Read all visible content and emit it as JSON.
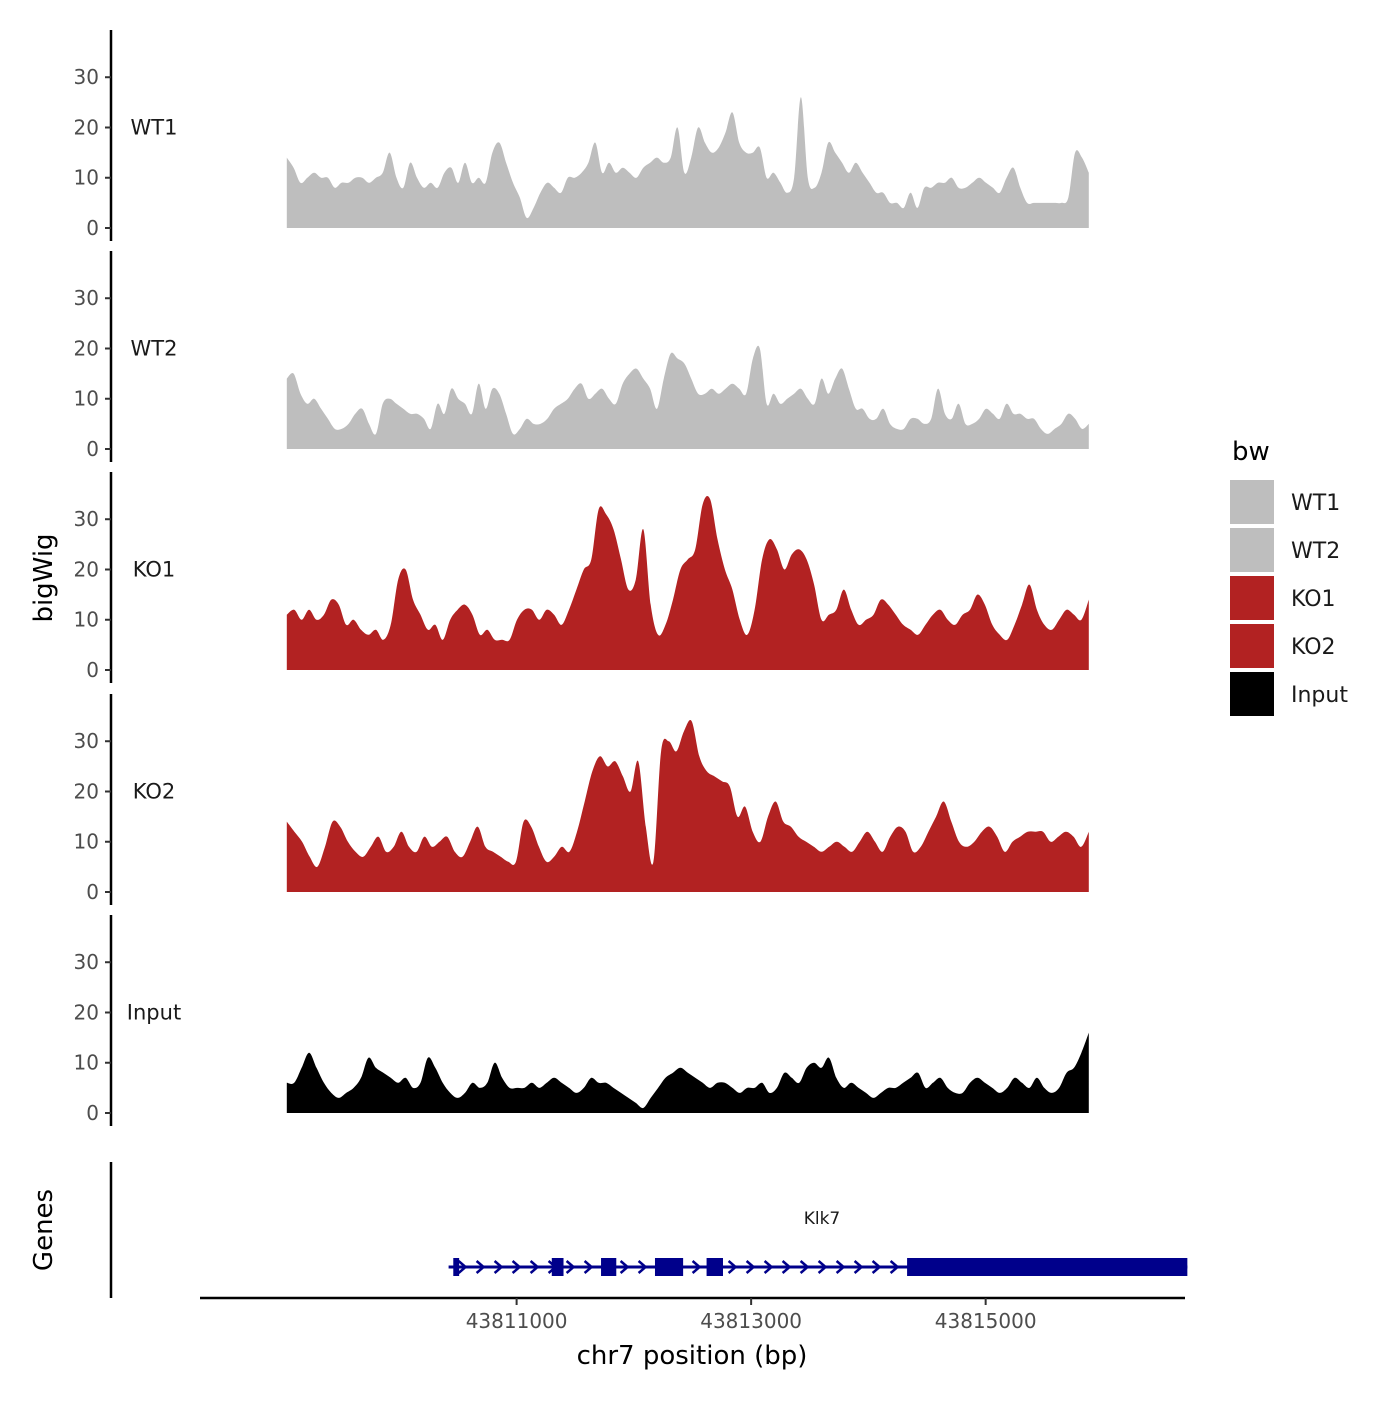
{
  "chart_data": {
    "type": "area",
    "y_axis_title": "bigWig",
    "x_axis_title": "chr7 position (bp)",
    "x_range": [
      43808300,
      43816700
    ],
    "x_ticks": [
      {
        "value": 43811000,
        "label": "43811000"
      },
      {
        "value": 43813000,
        "label": "43813000"
      },
      {
        "value": 43815000,
        "label": "43815000"
      }
    ],
    "y_range": [
      0,
      39
    ],
    "y_ticks": [
      {
        "value": 0,
        "label": "0"
      },
      {
        "value": 10,
        "label": "10"
      },
      {
        "value": 20,
        "label": "20"
      },
      {
        "value": 30,
        "label": "30"
      }
    ],
    "data_x_start": 43809040,
    "data_x_end": 43815880,
    "legend": {
      "title": "bw",
      "entries": [
        {
          "label": "WT1",
          "color": "#bebebe"
        },
        {
          "label": "WT2",
          "color": "#bebebe"
        },
        {
          "label": "KO1",
          "color": "#b22222"
        },
        {
          "label": "KO2",
          "color": "#b22222"
        },
        {
          "label": "Input",
          "color": "#000000"
        }
      ]
    },
    "series": [
      {
        "name": "WT1",
        "color": "#bebebe",
        "values": [
          14,
          12,
          9,
          10,
          11,
          10,
          10,
          8,
          9,
          9,
          10,
          10,
          9,
          10,
          11,
          15,
          10,
          8,
          13,
          10,
          8,
          9,
          8,
          11,
          12,
          9,
          13,
          9,
          10,
          9,
          15,
          17,
          13,
          9,
          6,
          2,
          4,
          7,
          9,
          8,
          7,
          10,
          10,
          11,
          13,
          17,
          11,
          13,
          11,
          12,
          11,
          10,
          12,
          13,
          14,
          13,
          14,
          20,
          11,
          14,
          20,
          17,
          15,
          16,
          19,
          23,
          17,
          15,
          15,
          16,
          10,
          11,
          9,
          7,
          10,
          26,
          10,
          8,
          11,
          17,
          15,
          13,
          11,
          13,
          11,
          9,
          7,
          7,
          5,
          5,
          4,
          7,
          4,
          8,
          8,
          9,
          9,
          10,
          8,
          8,
          9,
          10,
          9,
          8,
          7,
          10,
          12,
          8,
          5,
          5,
          5,
          5,
          5,
          5,
          6,
          15,
          14,
          11
        ]
      },
      {
        "name": "WT2",
        "color": "#bebebe",
        "values": [
          14,
          15,
          11,
          9,
          10,
          8,
          6,
          4,
          4,
          5,
          7,
          8,
          5,
          3,
          9,
          10,
          9,
          8,
          7,
          7,
          6,
          4,
          9,
          7,
          12,
          10,
          9,
          7,
          13,
          8,
          12,
          11,
          7,
          3,
          4,
          6,
          5,
          5,
          6,
          8,
          9,
          10,
          12,
          13,
          10,
          11,
          12,
          10,
          9,
          13,
          15,
          16,
          14,
          12,
          8,
          14,
          19,
          18,
          17,
          14,
          11,
          11,
          12,
          11,
          12,
          13,
          12,
          11,
          18,
          20,
          9,
          11,
          9,
          10,
          11,
          12,
          10,
          9,
          14,
          11,
          14,
          16,
          12,
          8,
          8,
          6,
          6,
          8,
          5,
          4,
          4,
          6,
          6,
          5,
          6,
          12,
          7,
          6,
          9,
          5,
          5,
          6,
          8,
          7,
          6,
          9,
          7,
          7,
          6,
          6,
          4,
          3,
          4,
          5,
          7,
          6,
          4,
          5
        ]
      },
      {
        "name": "KO1",
        "color": "#b22222",
        "values": [
          11,
          12,
          10,
          12,
          10,
          11,
          14,
          13,
          9,
          10,
          8,
          7,
          8,
          6,
          9,
          18,
          20,
          14,
          11,
          8,
          9,
          6,
          10,
          12,
          13,
          11,
          7,
          8,
          6,
          6,
          6,
          10,
          12,
          12,
          10,
          12,
          11,
          9,
          12,
          16,
          20,
          22,
          32,
          31,
          28,
          22,
          16,
          18,
          28,
          13,
          7,
          9,
          14,
          20,
          22,
          24,
          33,
          34,
          26,
          20,
          16,
          10,
          7,
          12,
          22,
          26,
          24,
          20,
          23,
          24,
          22,
          17,
          10,
          11,
          12,
          16,
          12,
          9,
          10,
          11,
          14,
          13,
          11,
          9,
          8,
          7,
          9,
          11,
          12,
          10,
          9,
          11,
          12,
          15,
          13,
          9,
          7,
          6,
          9,
          13,
          17,
          12,
          9,
          8,
          10,
          12,
          11,
          10,
          14
        ]
      },
      {
        "name": "KO2",
        "color": "#b22222",
        "values": [
          14,
          12,
          10,
          7,
          5,
          9,
          14,
          13,
          10,
          8,
          7,
          9,
          11,
          8,
          9,
          12,
          9,
          8,
          11,
          9,
          10,
          11,
          8,
          7,
          10,
          13,
          9,
          8,
          7,
          6,
          6,
          14,
          13,
          9,
          6,
          7,
          9,
          8,
          12,
          18,
          24,
          27,
          25,
          26,
          23,
          20,
          26,
          13,
          6,
          28,
          30,
          28,
          32,
          34,
          27,
          24,
          23,
          22,
          21,
          15,
          17,
          12,
          10,
          15,
          18,
          14,
          13,
          11,
          10,
          9,
          8,
          9,
          10,
          9,
          8,
          10,
          12,
          10,
          8,
          11,
          13,
          12,
          8,
          9,
          12,
          15,
          18,
          14,
          10,
          9,
          10,
          12,
          13,
          11,
          8,
          10,
          11,
          12,
          12,
          12,
          10,
          11,
          12,
          11,
          9,
          12
        ]
      },
      {
        "name": "Input",
        "color": "#000000",
        "values": [
          6,
          6,
          9,
          12,
          9,
          6,
          4,
          3,
          4,
          5,
          7,
          11,
          9,
          8,
          7,
          6,
          7,
          5,
          6,
          11,
          9,
          6,
          4,
          3,
          4,
          6,
          5,
          6,
          10,
          7,
          5,
          5,
          5,
          6,
          5,
          6,
          7,
          6,
          5,
          4,
          5,
          7,
          6,
          6,
          5,
          4,
          3,
          2,
          1,
          3,
          5,
          7,
          8,
          9,
          8,
          7,
          6,
          5,
          6,
          6,
          5,
          4,
          5,
          5,
          6,
          4,
          5,
          8,
          7,
          6,
          9,
          10,
          9,
          11,
          7,
          5,
          6,
          5,
          4,
          3,
          4,
          5,
          5,
          6,
          7,
          8,
          5,
          6,
          7,
          5,
          4,
          4,
          6,
          7,
          6,
          5,
          4,
          5,
          7,
          6,
          5,
          7,
          5,
          4,
          5,
          8,
          9,
          12,
          16
        ]
      }
    ],
    "genes_title": "Genes",
    "gene": {
      "name": "Klk7",
      "color": "#00008b",
      "start": 43810420,
      "end": 43816720,
      "exons": [
        [
          43810460,
          43810510
        ],
        [
          43811300,
          43811400
        ],
        [
          43811720,
          43811850
        ],
        [
          43812180,
          43812420
        ],
        [
          43812620,
          43812760
        ],
        [
          43814330,
          43816720
        ]
      ]
    }
  }
}
